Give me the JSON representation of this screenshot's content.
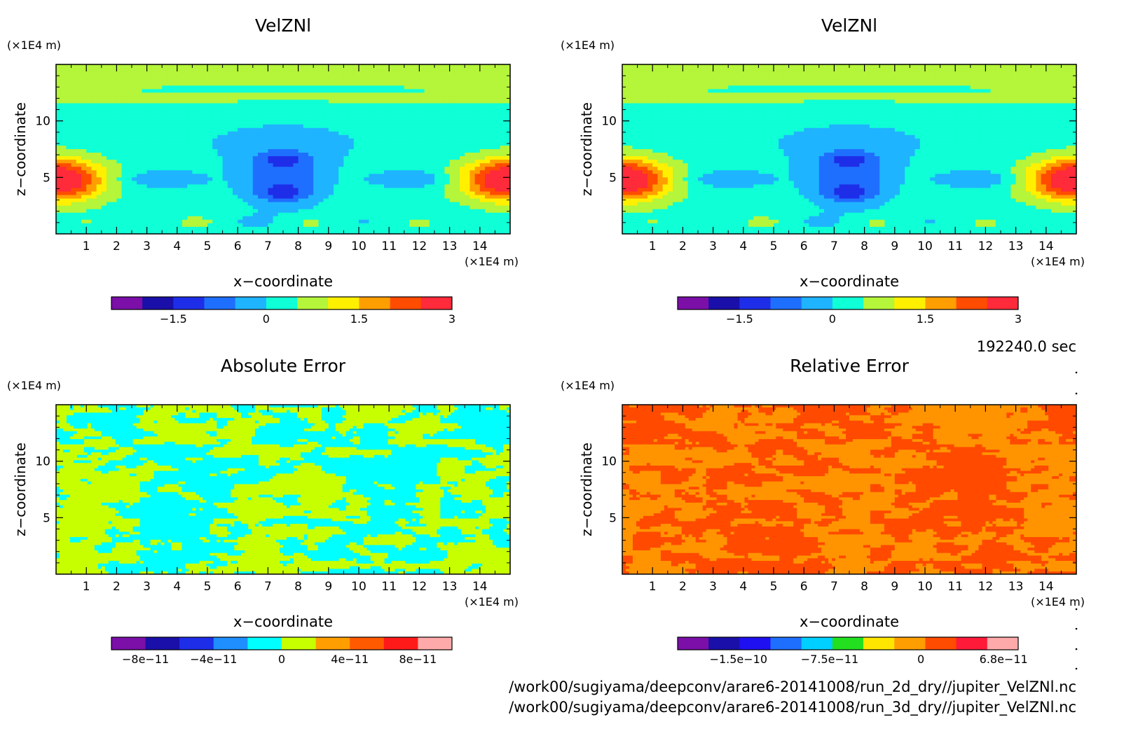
{
  "time_label": "192240.0 sec",
  "files": [
    "/work00/sugiyama/deepconv/arare6-20141008/run_2d_dry//jupiter_VelZNl.nc",
    "/work00/sugiyama/deepconv/arare6-20141008/run_3d_dry//jupiter_VelZNl.nc"
  ],
  "chart_data": [
    {
      "type": "heatmap",
      "title": "VelZNl",
      "xlabel": "x−coordinate",
      "ylabel": "z−coordinate",
      "x_unit": "(×1E4 m)",
      "y_unit": "(×1E4 m)",
      "xlim": [
        0,
        15
      ],
      "ylim": [
        0,
        15
      ],
      "x_ticks": [
        1,
        2,
        3,
        4,
        5,
        6,
        7,
        8,
        9,
        10,
        11,
        12,
        13,
        14
      ],
      "y_ticks": [
        5,
        10
      ],
      "pattern": "velocity",
      "colorbar": {
        "range": [
          -2.5,
          3
        ],
        "labels": [
          {
            "v": -1.5,
            "t": "−1.5"
          },
          {
            "v": 0,
            "t": "0"
          },
          {
            "v": 1.5,
            "t": "1.5"
          },
          {
            "v": 3,
            "t": "3"
          }
        ],
        "colors": [
          "#7b0fa8",
          "#1a0fa8",
          "#1e2ee8",
          "#1f6fff",
          "#1fb4ff",
          "#0fffd6",
          "#b5f53a",
          "#fff000",
          "#ff9e00",
          "#ff4c00",
          "#ff2a3a"
        ]
      }
    },
    {
      "type": "heatmap",
      "title": "VelZNl",
      "xlabel": "x−coordinate",
      "ylabel": "z−coordinate",
      "x_unit": "(×1E4 m)",
      "y_unit": "(×1E4 m)",
      "xlim": [
        0,
        15
      ],
      "ylim": [
        0,
        15
      ],
      "x_ticks": [
        1,
        2,
        3,
        4,
        5,
        6,
        7,
        8,
        9,
        10,
        11,
        12,
        13,
        14
      ],
      "y_ticks": [
        5,
        10
      ],
      "pattern": "velocity",
      "colorbar": {
        "range": [
          -2.5,
          3
        ],
        "labels": [
          {
            "v": -1.5,
            "t": "−1.5"
          },
          {
            "v": 0,
            "t": "0"
          },
          {
            "v": 1.5,
            "t": "1.5"
          },
          {
            "v": 3,
            "t": "3"
          }
        ],
        "colors": [
          "#7b0fa8",
          "#1a0fa8",
          "#1e2ee8",
          "#1f6fff",
          "#1fb4ff",
          "#0fffd6",
          "#b5f53a",
          "#fff000",
          "#ff9e00",
          "#ff4c00",
          "#ff2a3a"
        ]
      }
    },
    {
      "type": "heatmap",
      "title": "Absolute Error",
      "xlabel": "x−coordinate",
      "ylabel": "z−coordinate",
      "x_unit": "(×1E4 m)",
      "y_unit": "(×1E4 m)",
      "xlim": [
        0,
        15
      ],
      "ylim": [
        0,
        15
      ],
      "x_ticks": [
        1,
        2,
        3,
        4,
        5,
        6,
        7,
        8,
        9,
        10,
        11,
        12,
        13,
        14
      ],
      "y_ticks": [
        5,
        10
      ],
      "pattern": "noise",
      "noise_colors": [
        "#c8ff00",
        "#00ffff"
      ],
      "colorbar": {
        "range": [
          -1e-10,
          1e-10
        ],
        "labels": [
          {
            "v": -8e-11,
            "t": "−8e−11"
          },
          {
            "v": -4e-11,
            "t": "−4e−11"
          },
          {
            "v": 0,
            "t": "0"
          },
          {
            "v": 4e-11,
            "t": "4e−11"
          },
          {
            "v": 8e-11,
            "t": "8e−11"
          }
        ],
        "colors": [
          "#7b0fa8",
          "#1a0fa8",
          "#1e2ee8",
          "#1f8fff",
          "#00ffff",
          "#c8ff00",
          "#ff9e00",
          "#ff5a00",
          "#ff1a1a",
          "#ffaaaa"
        ]
      }
    },
    {
      "type": "heatmap",
      "title": "Relative Error",
      "xlabel": "x−coordinate",
      "ylabel": "z−coordinate",
      "x_unit": "(×1E4 m)",
      "y_unit": "(×1E4 m)",
      "xlim": [
        0,
        15
      ],
      "ylim": [
        0,
        15
      ],
      "x_ticks": [
        1,
        2,
        3,
        4,
        5,
        6,
        7,
        8,
        9,
        10,
        11,
        12,
        13,
        14
      ],
      "y_ticks": [
        5,
        10
      ],
      "pattern": "noise",
      "noise_colors": [
        "#ff9400",
        "#ff4a00"
      ],
      "colorbar": {
        "range": [
          -2e-10,
          8e-11
        ],
        "labels": [
          {
            "v": -1.5e-10,
            "t": "−1.5e−10"
          },
          {
            "v": -7.5e-11,
            "t": "−7.5e−11"
          },
          {
            "v": 0,
            "t": "0"
          },
          {
            "v": 6.8e-11,
            "t": "6.8e−11"
          }
        ],
        "colors": [
          "#7b0fa8",
          "#1a0fa8",
          "#1e10f0",
          "#1f6fff",
          "#00d0ff",
          "#22e020",
          "#ffe600",
          "#ff9e00",
          "#ff4c00",
          "#ff1a3a",
          "#ffaaaa"
        ]
      }
    }
  ]
}
